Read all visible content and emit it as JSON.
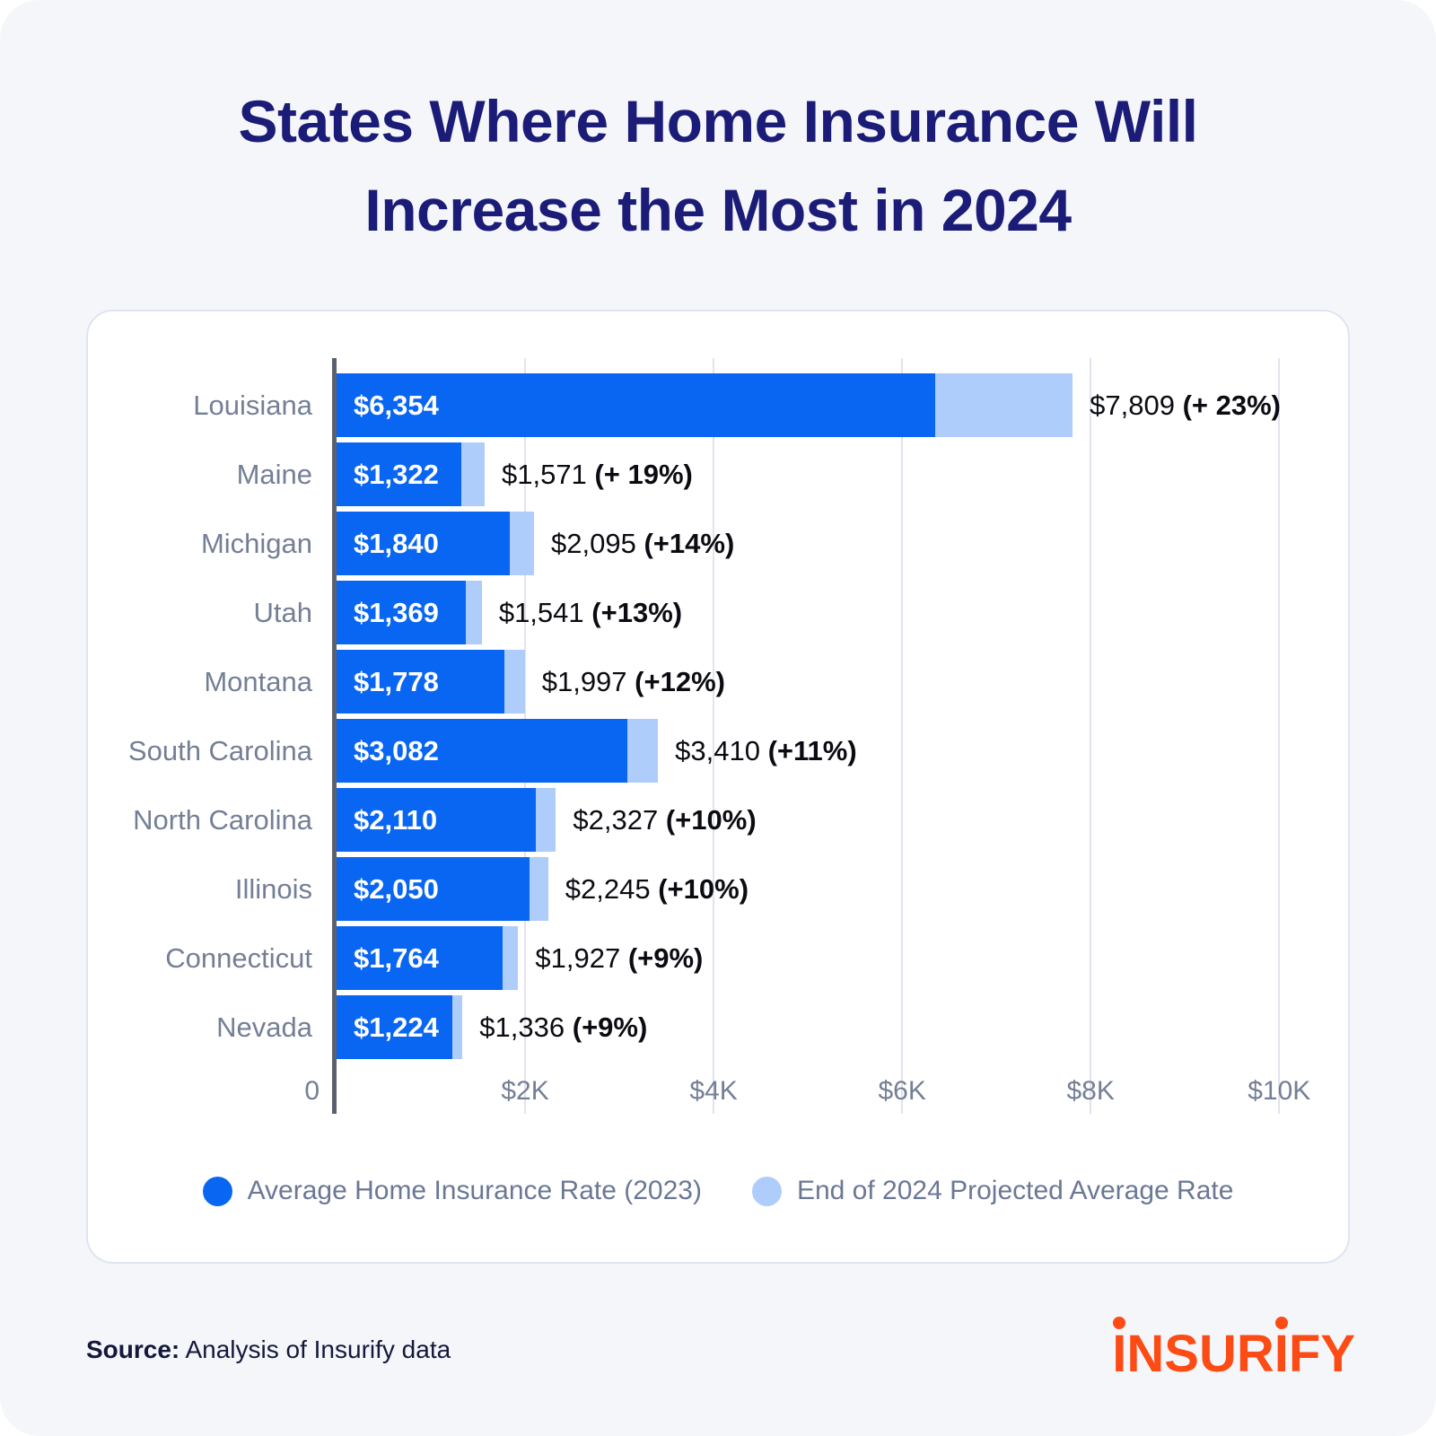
{
  "title": {
    "line1": "States Where Home Insurance Will",
    "line2": "Increase the Most in 2024"
  },
  "chart_data": {
    "type": "bar",
    "orientation": "horizontal",
    "title": "States Where Home Insurance Will Increase the Most in 2024",
    "categories": [
      "Louisiana",
      "Maine",
      "Michigan",
      "Utah",
      "Montana",
      "South Carolina",
      "North Carolina",
      "Illinois",
      "Connecticut",
      "Nevada"
    ],
    "series": [
      {
        "name": "Average Home Insurance Rate (2023)",
        "values": [
          6354,
          1322,
          1840,
          1369,
          1778,
          3082,
          2110,
          2050,
          1764,
          1224
        ],
        "color": "#0966F2"
      },
      {
        "name": "End of 2024 Projected Average Rate",
        "values": [
          7809,
          1571,
          2095,
          1541,
          1997,
          3410,
          2327,
          2245,
          1927,
          1336
        ],
        "color": "#AECDFA"
      }
    ],
    "bar_labels_2023": [
      "$6,354",
      "$1,322",
      "$1,840",
      "$1,369",
      "$1,778",
      "$3,082",
      "$2,110",
      "$2,050",
      "$1,764",
      "$1,224"
    ],
    "labels_2024": [
      {
        "value": "$7,809",
        "pct": "(+ 23%)"
      },
      {
        "value": "$1,571",
        "pct": "(+ 19%)"
      },
      {
        "value": "$2,095",
        "pct": "(+14%)"
      },
      {
        "value": "$1,541",
        "pct": "(+13%)"
      },
      {
        "value": "$1,997",
        "pct": "(+12%)"
      },
      {
        "value": "$3,410",
        "pct": "(+11%)"
      },
      {
        "value": "$2,327",
        "pct": "(+10%)"
      },
      {
        "value": "$2,245",
        "pct": "(+10%)"
      },
      {
        "value": "$1,927",
        "pct": "(+9%)"
      },
      {
        "value": "$1,336",
        "pct": "(+9%)"
      }
    ],
    "x_axis": {
      "zero_label": "0",
      "ticks": [
        {
          "label": "$2K",
          "value": 2000
        },
        {
          "label": "$4K",
          "value": 4000
        },
        {
          "label": "$6K",
          "value": 6000
        },
        {
          "label": "$8K",
          "value": 8000
        },
        {
          "label": "$10K",
          "value": 10000
        }
      ],
      "axis_max": 10350
    },
    "grid": true,
    "legend_position": "bottom"
  },
  "legend": {
    "items": [
      {
        "label": "Average Home Insurance Rate (2023)",
        "color": "#0966F2"
      },
      {
        "label": "End of 2024 Projected Average Rate",
        "color": "#AECDFA"
      }
    ]
  },
  "source": {
    "prefix": "Source:",
    "text": " Analysis of Insurify data"
  },
  "logo": {
    "text": "INSURIFY"
  },
  "colors": {
    "title_navy": "#1B1B78",
    "bar_2023": "#0966F2",
    "bar_2024": "#AECDFA",
    "logo_orange": "#FC4B14",
    "page_background": "#F5F6FA",
    "card_background": "#FFFFFF"
  }
}
